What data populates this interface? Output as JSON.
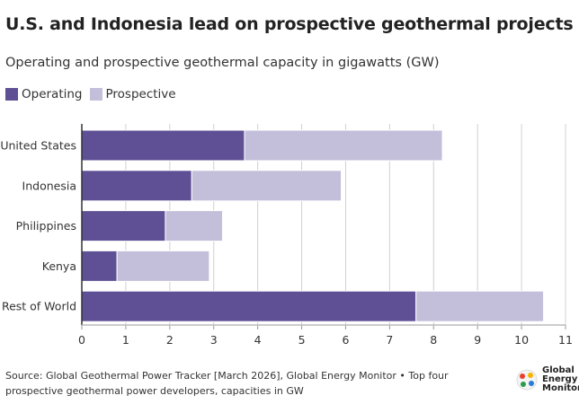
{
  "title": "U.S. and Indonesia lead on prospective geothermal projects",
  "subtitle": "Operating and prospective geothermal capacity in gigawatts (GW)",
  "source": "Source: Global Geothermal Power Tracker [March 2026], Global Energy Monitor • Top four prospective geothermal power developers, capacities in GW",
  "logo": {
    "line1": "Global",
    "line2": "Energy",
    "line3": "Monitor"
  },
  "chart_data": {
    "type": "bar",
    "orientation": "horizontal",
    "stacked": true,
    "categories": [
      "United States",
      "Indonesia",
      "Philippines",
      "Kenya",
      "Rest of World"
    ],
    "series": [
      {
        "name": "Operating",
        "color": "#5f5096",
        "values": [
          3.7,
          2.5,
          1.9,
          0.8,
          7.6
        ]
      },
      {
        "name": "Prospective",
        "color": "#c3bfda",
        "values": [
          4.5,
          3.4,
          1.3,
          2.1,
          2.9
        ]
      }
    ],
    "xlim": [
      0,
      11
    ],
    "xticks": [
      "0",
      "1",
      "2",
      "3",
      "4",
      "5",
      "6",
      "7",
      "8",
      "9",
      "10",
      "11"
    ],
    "grid": true,
    "legend": "top-left"
  }
}
